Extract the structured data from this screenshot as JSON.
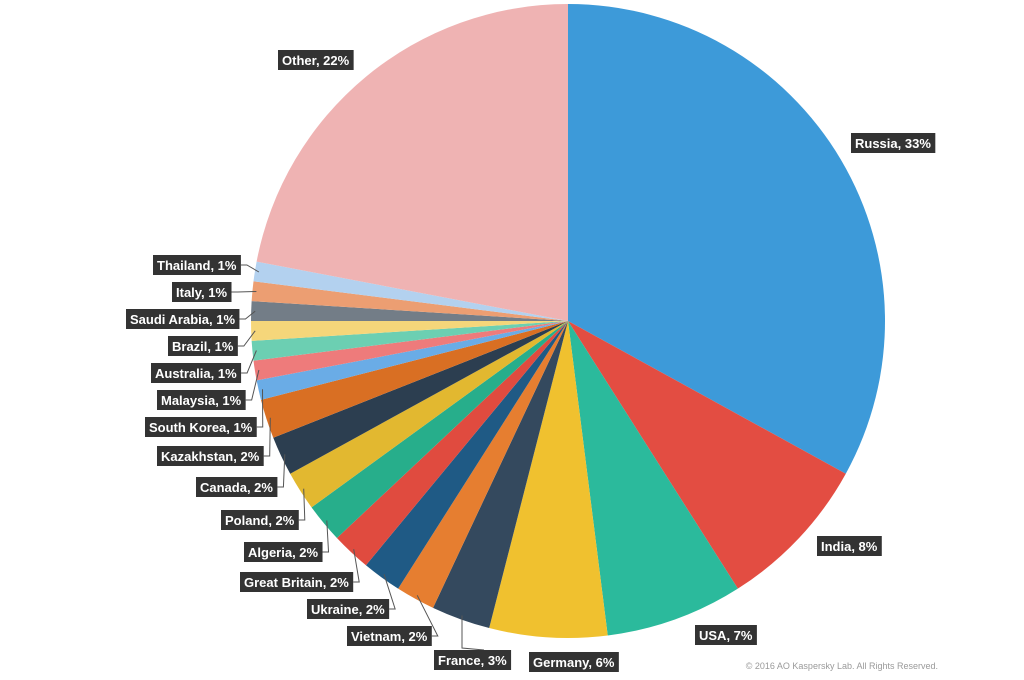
{
  "chart_data": {
    "type": "pie",
    "slices": [
      {
        "label": "Russia, 33%",
        "name": "Russia",
        "value": 33,
        "color": "#3d9ad9"
      },
      {
        "label": "India, 8%",
        "name": "India",
        "value": 8,
        "color": "#e34d42"
      },
      {
        "label": "USA, 7%",
        "name": "USA",
        "value": 7,
        "color": "#2bba9c"
      },
      {
        "label": "Germany, 6%",
        "name": "Germany",
        "value": 6,
        "color": "#f0c12f"
      },
      {
        "label": "France, 3%",
        "name": "France",
        "value": 3,
        "color": "#34495e"
      },
      {
        "label": "Vietnam, 2%",
        "name": "Vietnam",
        "value": 2,
        "color": "#e67e30"
      },
      {
        "label": "Ukraine, 2%",
        "name": "Ukraine",
        "value": 2,
        "color": "#1f5a85"
      },
      {
        "label": "Great Britain, 2%",
        "name": "Great Britain",
        "value": 2,
        "color": "#e04b3f"
      },
      {
        "label": "Algeria, 2%",
        "name": "Algeria",
        "value": 2,
        "color": "#27ae8b"
      },
      {
        "label": "Poland, 2%",
        "name": "Poland",
        "value": 2,
        "color": "#e2b830"
      },
      {
        "label": "Canada, 2%",
        "name": "Canada",
        "value": 2,
        "color": "#2c3e50"
      },
      {
        "label": "Kazakhstan, 2%",
        "name": "Kazakhstan",
        "value": 2,
        "color": "#d96f23"
      },
      {
        "label": "South Korea, 1%",
        "name": "South Korea",
        "value": 1,
        "color": "#6aace6"
      },
      {
        "label": "Malaysia, 1%",
        "name": "Malaysia",
        "value": 1,
        "color": "#ee7b7b"
      },
      {
        "label": "Australia, 1%",
        "name": "Australia",
        "value": 1,
        "color": "#6ccfb2"
      },
      {
        "label": "Brazil, 1%",
        "name": "Brazil",
        "value": 1,
        "color": "#f5d67a"
      },
      {
        "label": "Saudi Arabia, 1%",
        "name": "Saudi Arabia",
        "value": 1,
        "color": "#737d87"
      },
      {
        "label": "Italy, 1%",
        "name": "Italy",
        "value": 1,
        "color": "#ec9e72"
      },
      {
        "label": "Thailand, 1%",
        "name": "Thailand",
        "value": 1,
        "color": "#b3d1ef"
      },
      {
        "label": "Other, 22%",
        "name": "Other",
        "value": 22,
        "color": "#efb3b3"
      }
    ]
  },
  "footer": {
    "copyright": "© 2016 AO Kaspersky Lab. All Rights Reserved."
  }
}
